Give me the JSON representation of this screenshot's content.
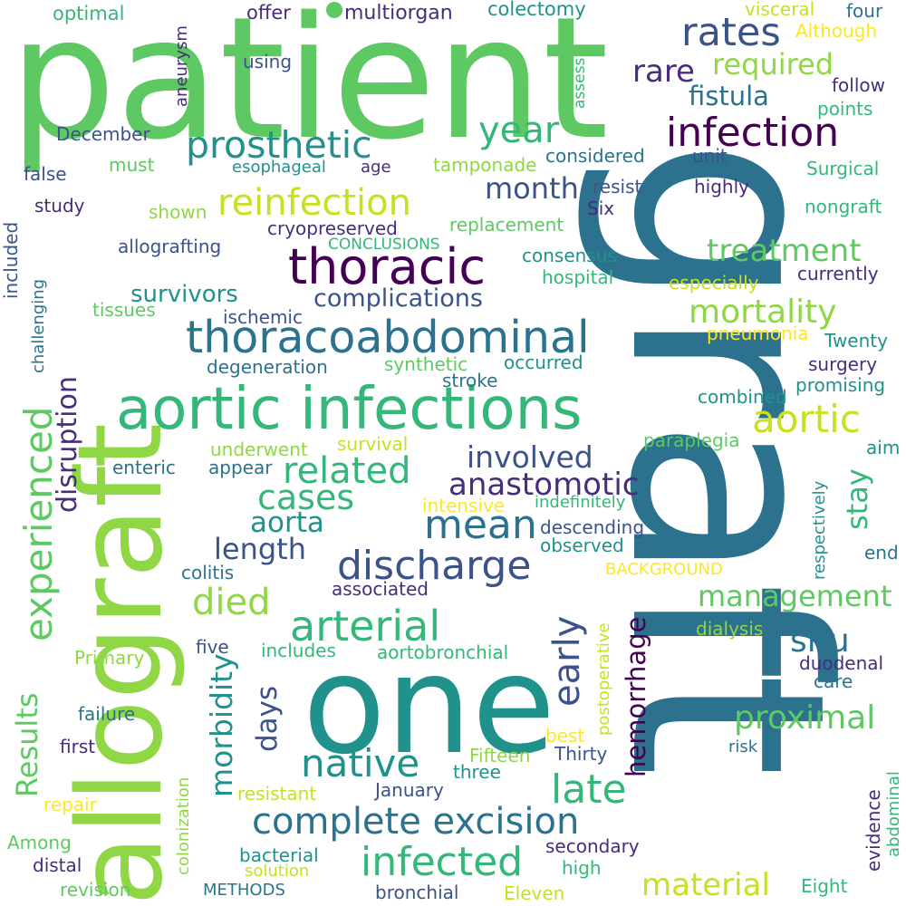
{
  "palette": {
    "light_green": "#8fd744",
    "green": "#5ec962",
    "teal_green": "#35b779",
    "teal": "#21918c",
    "blue_teal": "#2c728e",
    "indigo": "#3b528b",
    "violet": "#472d7b",
    "deep_purple": "#440154",
    "yellow_green": "#c8e020",
    "yellow": "#fde725"
  },
  "words": [
    {
      "text": "patient",
      "color": "#5ec962"
    },
    {
      "text": "graft",
      "color": "#2c728e"
    },
    {
      "text": "allograft",
      "color": "#8fd744"
    },
    {
      "text": "one",
      "color": "#21918c"
    },
    {
      "text": "aortic infections",
      "color": "#35b779"
    },
    {
      "text": "thoracoabdominal",
      "color": "#2c728e"
    },
    {
      "text": "thoracic",
      "color": "#440154"
    },
    {
      "text": "infection",
      "color": "#440154"
    },
    {
      "text": "prosthetic",
      "color": "#21918c"
    },
    {
      "text": "reinfection",
      "color": "#c8e020"
    },
    {
      "text": "complete excision",
      "color": "#2c728e"
    },
    {
      "text": "experienced",
      "color": "#5ec962"
    },
    {
      "text": "arterial",
      "color": "#35b779"
    },
    {
      "text": "discharge",
      "color": "#3b528b"
    },
    {
      "text": "infected",
      "color": "#35b779"
    },
    {
      "text": "rates",
      "color": "#3b528b"
    },
    {
      "text": "year",
      "color": "#35b779"
    },
    {
      "text": "native",
      "color": "#21918c"
    },
    {
      "text": "late",
      "color": "#35b779"
    },
    {
      "text": "aortic",
      "color": "#c8e020"
    },
    {
      "text": "mean",
      "color": "#2c728e"
    },
    {
      "text": "related",
      "color": "#35b779"
    },
    {
      "text": "cases",
      "color": "#35b779"
    },
    {
      "text": "anastomotic",
      "color": "#472d7b"
    },
    {
      "text": "involved",
      "color": "#3b528b"
    },
    {
      "text": "treatment",
      "color": "#5ec962"
    },
    {
      "text": "mortality",
      "color": "#8fd744"
    },
    {
      "text": "management",
      "color": "#5ec962"
    },
    {
      "text": "proximal",
      "color": "#5ec962"
    },
    {
      "text": "material",
      "color": "#c8e020"
    },
    {
      "text": "died",
      "color": "#8fd744"
    },
    {
      "text": "early",
      "color": "#3b528b"
    },
    {
      "text": "month",
      "color": "#3b528b"
    },
    {
      "text": "required",
      "color": "#8fd744"
    },
    {
      "text": "rare",
      "color": "#472d7b"
    },
    {
      "text": "fistula",
      "color": "#2c728e"
    },
    {
      "text": "aorta",
      "color": "#21918c"
    },
    {
      "text": "length",
      "color": "#3b528b"
    },
    {
      "text": "situ",
      "color": "#2c728e"
    },
    {
      "text": "stay",
      "color": "#35b779"
    },
    {
      "text": "complications",
      "color": "#3b528b"
    },
    {
      "text": "survivors",
      "color": "#21918c"
    },
    {
      "text": "disruption",
      "color": "#472d7b"
    },
    {
      "text": "morbidity",
      "color": "#21918c"
    },
    {
      "text": "hemorrhage",
      "color": "#440154"
    },
    {
      "text": "Results",
      "color": "#5ec962"
    },
    {
      "text": "days",
      "color": "#3b528b"
    },
    {
      "text": "optimal",
      "color": "#35b779"
    },
    {
      "text": "offer",
      "color": "#472d7b"
    },
    {
      "text": "multiorgan",
      "color": "#472d7b"
    },
    {
      "text": "colectomy",
      "color": "#21918c"
    },
    {
      "text": "visceral",
      "color": "#c8e020"
    },
    {
      "text": "four",
      "color": "#2c728e"
    },
    {
      "text": "Although",
      "color": "#fde725"
    },
    {
      "text": "aneurysm",
      "color": "#472d7b"
    },
    {
      "text": "using",
      "color": "#3b528b"
    },
    {
      "text": "assess",
      "color": "#35b779"
    },
    {
      "text": "follow",
      "color": "#472d7b"
    },
    {
      "text": "points",
      "color": "#35b779"
    },
    {
      "text": "December",
      "color": "#3b528b"
    },
    {
      "text": "considered",
      "color": "#2c728e"
    },
    {
      "text": "unit",
      "color": "#3b528b"
    },
    {
      "text": "Surgical",
      "color": "#35b779"
    },
    {
      "text": "false",
      "color": "#3b528b"
    },
    {
      "text": "must",
      "color": "#5ec962"
    },
    {
      "text": "esophageal",
      "color": "#21918c"
    },
    {
      "text": "age",
      "color": "#472d7b"
    },
    {
      "text": "tamponade",
      "color": "#8fd744"
    },
    {
      "text": "resist",
      "color": "#3b528b"
    },
    {
      "text": "highly",
      "color": "#472d7b"
    },
    {
      "text": "study",
      "color": "#472d7b"
    },
    {
      "text": "shown",
      "color": "#8fd744"
    },
    {
      "text": "cryopreserved",
      "color": "#472d7b"
    },
    {
      "text": "replacement",
      "color": "#5ec962"
    },
    {
      "text": "Six",
      "color": "#472d7b"
    },
    {
      "text": "nongraft",
      "color": "#35b779"
    },
    {
      "text": "allografting",
      "color": "#3b528b"
    },
    {
      "text": "CONCLUSIONS",
      "color": "#35b779"
    },
    {
      "text": "consensus",
      "color": "#21918c"
    },
    {
      "text": "hospital",
      "color": "#35b779"
    },
    {
      "text": "currently",
      "color": "#472d7b"
    },
    {
      "text": "especially",
      "color": "#c8e020"
    },
    {
      "text": "included",
      "color": "#3b528b"
    },
    {
      "text": "challenging",
      "color": "#2c728e"
    },
    {
      "text": "tissues",
      "color": "#5ec962"
    },
    {
      "text": "ischemic",
      "color": "#3b528b"
    },
    {
      "text": "pneumonia",
      "color": "#fde725"
    },
    {
      "text": "Twenty",
      "color": "#21918c"
    },
    {
      "text": "degeneration",
      "color": "#2c728e"
    },
    {
      "text": "synthetic",
      "color": "#5ec962"
    },
    {
      "text": "occurred",
      "color": "#21918c"
    },
    {
      "text": "surgery",
      "color": "#472d7b"
    },
    {
      "text": "stroke",
      "color": "#2c728e"
    },
    {
      "text": "promising",
      "color": "#21918c"
    },
    {
      "text": "combined",
      "color": "#21918c"
    },
    {
      "text": "underwent",
      "color": "#8fd744"
    },
    {
      "text": "survival",
      "color": "#c8e020"
    },
    {
      "text": "paraplegia",
      "color": "#5ec962"
    },
    {
      "text": "enteric",
      "color": "#2c728e"
    },
    {
      "text": "appear",
      "color": "#2c728e"
    },
    {
      "text": "respectively",
      "color": "#21918c"
    },
    {
      "text": "aim",
      "color": "#21918c"
    },
    {
      "text": "intensive",
      "color": "#fde725"
    },
    {
      "text": "indefinitely",
      "color": "#35b779"
    },
    {
      "text": "descending",
      "color": "#3b528b"
    },
    {
      "text": "observed",
      "color": "#21918c"
    },
    {
      "text": "end",
      "color": "#2c728e"
    },
    {
      "text": "colitis",
      "color": "#2c728e"
    },
    {
      "text": "BACKGROUND",
      "color": "#fde725"
    },
    {
      "text": "associated",
      "color": "#472d7b"
    },
    {
      "text": "Thirty",
      "color": "#3b528b"
    },
    {
      "text": "postoperative",
      "color": "#c8e020"
    },
    {
      "text": "dialysis",
      "color": "#8fd744"
    },
    {
      "text": "Primary",
      "color": "#8fd744"
    },
    {
      "text": "five",
      "color": "#3b528b"
    },
    {
      "text": "includes",
      "color": "#35b779"
    },
    {
      "text": "aortobronchial",
      "color": "#35b779"
    },
    {
      "text": "duodenal",
      "color": "#472d7b"
    },
    {
      "text": "care",
      "color": "#2c728e"
    },
    {
      "text": "failure",
      "color": "#2c728e"
    },
    {
      "text": "best",
      "color": "#fde725"
    },
    {
      "text": "first",
      "color": "#472d7b"
    },
    {
      "text": "colonization",
      "color": "#8fd744"
    },
    {
      "text": "Fifteen",
      "color": "#8fd744"
    },
    {
      "text": "risk",
      "color": "#2c728e"
    },
    {
      "text": "three",
      "color": "#21918c"
    },
    {
      "text": "evidence",
      "color": "#472d7b"
    },
    {
      "text": "abdominal",
      "color": "#35b779"
    },
    {
      "text": "repair",
      "color": "#fde725"
    },
    {
      "text": "resistant",
      "color": "#c8e020"
    },
    {
      "text": "January",
      "color": "#3b528b"
    },
    {
      "text": "Among",
      "color": "#5ec962"
    },
    {
      "text": "distal",
      "color": "#472d7b"
    },
    {
      "text": "bacterial",
      "color": "#21918c"
    },
    {
      "text": "solution",
      "color": "#c8e020"
    },
    {
      "text": "secondary",
      "color": "#472d7b"
    },
    {
      "text": "high",
      "color": "#35b779"
    },
    {
      "text": "revision",
      "color": "#5ec962"
    },
    {
      "text": "METHODS",
      "color": "#2c728e"
    },
    {
      "text": "bronchial",
      "color": "#3b528b"
    },
    {
      "text": "Eleven",
      "color": "#c8e020"
    },
    {
      "text": "Eight",
      "color": "#35b779"
    }
  ]
}
